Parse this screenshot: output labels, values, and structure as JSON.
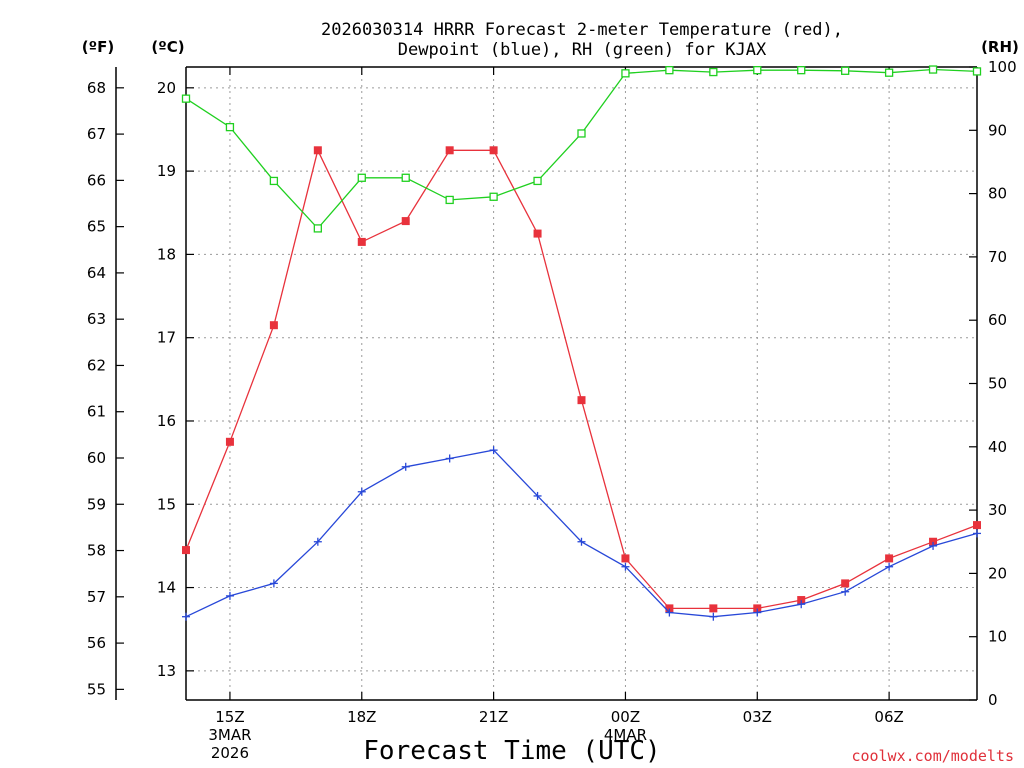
{
  "chart_data": {
    "type": "line",
    "title_line1": "2026030314 HRRR Forecast 2-meter Temperature (red),",
    "title_line2": "Dewpoint (blue), RH (green) for KJAX",
    "xlabel": "Forecast Time (UTC)",
    "credit": "coolwx.com/modelts",
    "units": {
      "fahrenheit": "(ºF)",
      "celsius": "(ºC)",
      "rh": "(RH)"
    },
    "grid": true,
    "x": [
      14,
      15,
      16,
      17,
      18,
      19,
      20,
      21,
      22,
      23,
      24,
      25,
      26,
      27,
      28,
      29,
      30,
      31,
      32
    ],
    "xlim": [
      14,
      32
    ],
    "x_ticks": [
      {
        "x": 15,
        "label": "15Z",
        "sub1": "3MAR",
        "sub2": "2026"
      },
      {
        "x": 18,
        "label": "18Z",
        "sub1": "",
        "sub2": ""
      },
      {
        "x": 21,
        "label": "21Z",
        "sub1": "",
        "sub2": ""
      },
      {
        "x": 24,
        "label": "00Z",
        "sub1": "4MAR",
        "sub2": ""
      },
      {
        "x": 27,
        "label": "03Z",
        "sub1": "",
        "sub2": ""
      },
      {
        "x": 30,
        "label": "06Z",
        "sub1": "",
        "sub2": ""
      }
    ],
    "left_axis_celsius": {
      "ylim": [
        12.65,
        20.25
      ],
      "ticks": [
        13,
        14,
        15,
        16,
        17,
        18,
        19,
        20
      ]
    },
    "left_axis_fahrenheit": {
      "ticks": [
        55,
        56,
        57,
        58,
        59,
        60,
        61,
        62,
        63,
        64,
        65,
        66,
        67,
        68
      ]
    },
    "right_axis_rh": {
      "ylim": [
        0,
        100
      ],
      "ticks": [
        0,
        10,
        20,
        30,
        40,
        50,
        60,
        70,
        80,
        90,
        100
      ]
    },
    "series": [
      {
        "name": "2-meter Temperature",
        "axis": "celsius",
        "color": "#e8323c",
        "marker": "filled-square",
        "values": [
          14.45,
          15.75,
          17.15,
          19.25,
          18.15,
          18.4,
          19.25,
          19.25,
          18.25,
          16.25,
          14.35,
          13.75,
          13.75,
          13.75,
          13.85,
          14.05,
          14.35,
          14.55,
          14.75
        ]
      },
      {
        "name": "Dewpoint",
        "axis": "celsius",
        "color": "#2848d8",
        "marker": "plus",
        "values": [
          13.65,
          13.9,
          14.05,
          14.55,
          15.15,
          15.45,
          15.55,
          15.65,
          15.1,
          14.55,
          14.25,
          13.7,
          13.65,
          13.7,
          13.8,
          13.95,
          14.25,
          14.5,
          14.65
        ]
      },
      {
        "name": "RH",
        "axis": "rh",
        "color": "#20d020",
        "marker": "open-square",
        "values": [
          95,
          90.5,
          82,
          74.5,
          82.5,
          82.5,
          79,
          79.5,
          82,
          89.5,
          99,
          99.5,
          99.2,
          99.5,
          99.5,
          99.4,
          99.1,
          99.6,
          99.3
        ]
      }
    ]
  }
}
